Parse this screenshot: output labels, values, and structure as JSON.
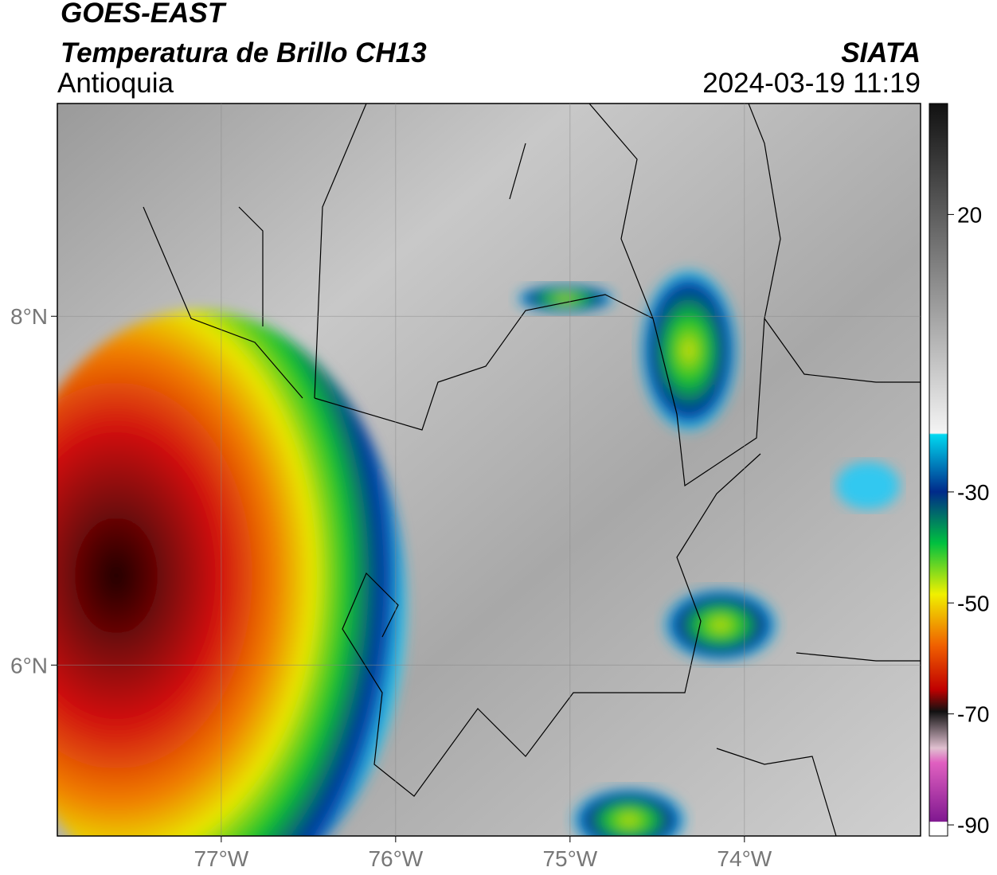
{
  "header": {
    "satellite": "GOES-EAST",
    "product": "Temperatura de Brillo CH13",
    "region": "Antioquia",
    "source": "SIATA",
    "datetime": "2024-03-19 11:19"
  },
  "map": {
    "xlim": [
      -77.94,
      -72.99
    ],
    "ylim": [
      5.02,
      9.22
    ],
    "xticks": [
      {
        "value": -77,
        "label": "77°W"
      },
      {
        "value": -76,
        "label": "76°W"
      },
      {
        "value": -75,
        "label": "75°W"
      },
      {
        "value": -74,
        "label": "74°W"
      }
    ],
    "yticks": [
      {
        "value": 8,
        "label": "8°N"
      },
      {
        "value": 6,
        "label": "6°N"
      }
    ],
    "grid": true
  },
  "colorbar": {
    "lim": [
      -92,
      40
    ],
    "ticks": [
      20,
      -30,
      -50,
      -70,
      -90
    ]
  }
}
